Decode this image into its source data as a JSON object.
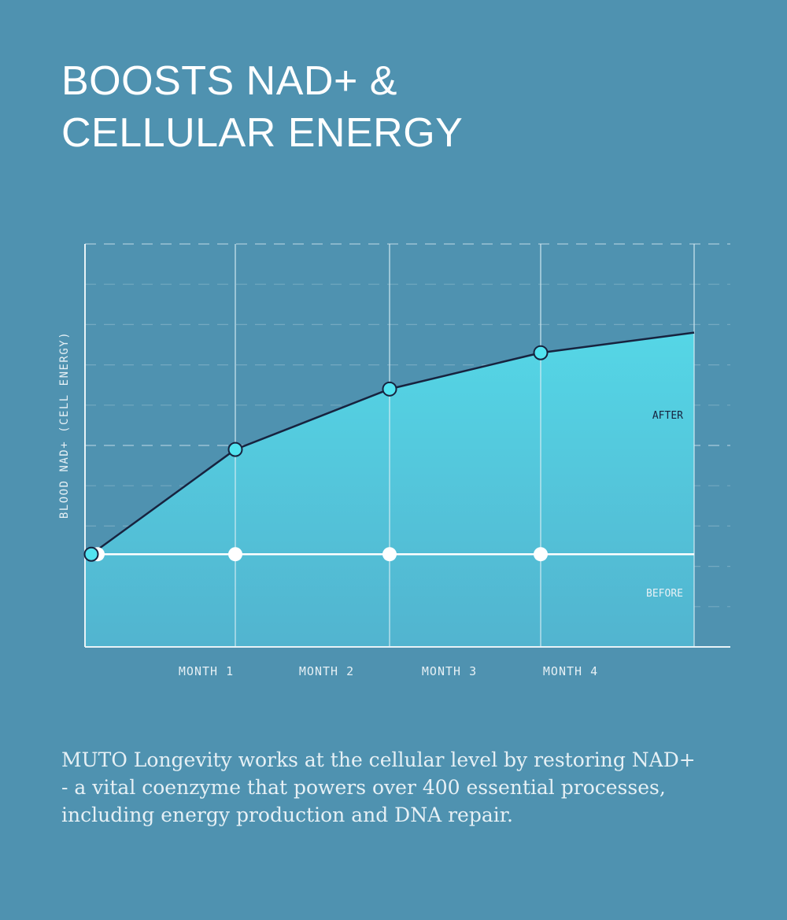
{
  "header": {
    "title_line1": "BOOSTS NAD+ &",
    "title_line2": "CELLULAR ENERGY"
  },
  "description": "MUTO Longevity works at the cellular level by restoring NAD+ - a vital coenzyme that powers over 400 essential processes, including energy production and DNA repair.",
  "colors": {
    "background": "#4f92b0",
    "area_top": "#55d6e6",
    "area_bottom": "#52b4cf",
    "line": "#17233f",
    "marker": "#52e3f0",
    "grid": "#c9dfe9"
  },
  "chart_data": {
    "type": "area",
    "title": "",
    "ylabel": "BLOOD NAD+ (CELL ENERGY)",
    "xlabel": "",
    "x": [
      0,
      1,
      2,
      3,
      4
    ],
    "categories": [
      "",
      "MONTH 1",
      "MONTH 2",
      "MONTH 3",
      "MONTH 4"
    ],
    "tick_labels": [
      "MONTH 1",
      "MONTH 2",
      "MONTH 3",
      "MONTH 4"
    ],
    "ylim": [
      0,
      10
    ],
    "grid": true,
    "series": [
      {
        "name": "AFTER",
        "x": [
          0,
          1,
          2,
          3,
          4
        ],
        "values": [
          2.3,
          4.9,
          6.4,
          7.3,
          7.8
        ]
      },
      {
        "name": "BEFORE",
        "x": [
          0,
          1,
          2,
          3,
          4
        ],
        "values": [
          2.3,
          2.3,
          2.3,
          2.3,
          2.3
        ]
      }
    ]
  }
}
